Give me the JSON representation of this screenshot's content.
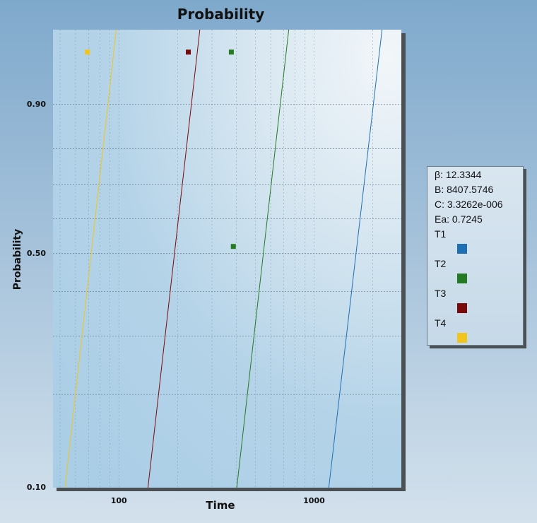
{
  "chart_data": {
    "type": "line",
    "title": "Probability",
    "xlabel": "Time",
    "ylabel": "Probability",
    "x_scale": "log",
    "y_scale": "weibull",
    "xlim": [
      46,
      2800
    ],
    "ylim": [
      0.1,
      0.985
    ],
    "x_ticks": [
      {
        "value": 100,
        "label": "100"
      },
      {
        "value": 1000,
        "label": "1000"
      }
    ],
    "y_ticks": [
      {
        "value": 0.9,
        "label": "0.90"
      },
      {
        "value": 0.5,
        "label": "0.50"
      },
      {
        "value": 0.1,
        "label": "0.10"
      }
    ],
    "y_gridlines": [
      0.9,
      0.8,
      0.7,
      0.6,
      0.5,
      0.4,
      0.3,
      0.2
    ],
    "grid": true,
    "legend": {
      "position": "right",
      "stats": [
        "β: 12.3344",
        "B: 8407.5746",
        "C: 3.3262e-006",
        "Ea: 0.7245"
      ]
    },
    "series": [
      {
        "name": "T1",
        "color": "#1f6fb5",
        "line": [
          [
            1190,
            0.1
          ],
          [
            2230,
            0.985
          ]
        ],
        "points": []
      },
      {
        "name": "T2",
        "color": "#237a23",
        "line": [
          [
            402,
            0.1
          ],
          [
            742,
            0.985
          ]
        ],
        "points": [
          [
            377,
            0.97
          ],
          [
            386,
            0.52
          ]
        ]
      },
      {
        "name": "T3",
        "color": "#7a0a0a",
        "line": [
          [
            141,
            0.1
          ],
          [
            260,
            0.985
          ]
        ],
        "points": [
          [
            227,
            0.97
          ]
        ]
      },
      {
        "name": "T4",
        "color": "#f2c51c",
        "line": [
          [
            53,
            0.1
          ],
          [
            97,
            0.985
          ]
        ],
        "points": [
          [
            69,
            0.97
          ]
        ]
      }
    ]
  }
}
